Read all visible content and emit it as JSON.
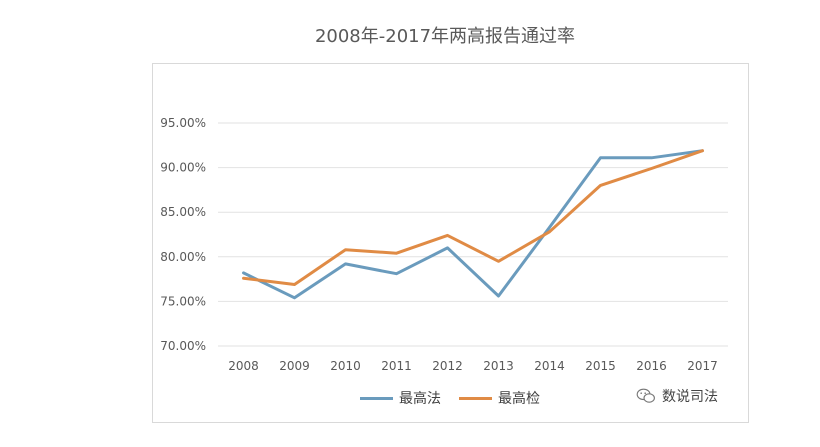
{
  "colors": {
    "series_1": "#6a9bbd",
    "series_2": "#e08b45",
    "grid": "#e2e2e2",
    "axis_text": "#595959"
  },
  "watermark": {
    "icon": "wechat-icon",
    "text": "数说司法"
  },
  "chart_data": {
    "type": "line",
    "title": "2008年-2017年两高报告通过率",
    "xlabel": "",
    "ylabel": "",
    "x": [
      "2008",
      "2009",
      "2010",
      "2011",
      "2012",
      "2013",
      "2014",
      "2015",
      "2016",
      "2017"
    ],
    "ylim": [
      70,
      95
    ],
    "yticks": [
      95,
      90,
      85,
      80,
      75,
      70
    ],
    "ytick_labels": [
      "95.00%",
      "90.00%",
      "85.00%",
      "80.00%",
      "75.00%",
      "70.00%"
    ],
    "grid": true,
    "legend_position": "bottom",
    "series": [
      {
        "name": "最高法",
        "values": [
          78.2,
          75.4,
          79.2,
          78.1,
          81.0,
          75.6,
          83.3,
          91.1,
          91.1,
          91.9
        ]
      },
      {
        "name": "最高检",
        "values": [
          77.6,
          76.9,
          80.8,
          80.4,
          82.4,
          79.5,
          82.8,
          88.0,
          89.9,
          91.9
        ]
      }
    ]
  }
}
